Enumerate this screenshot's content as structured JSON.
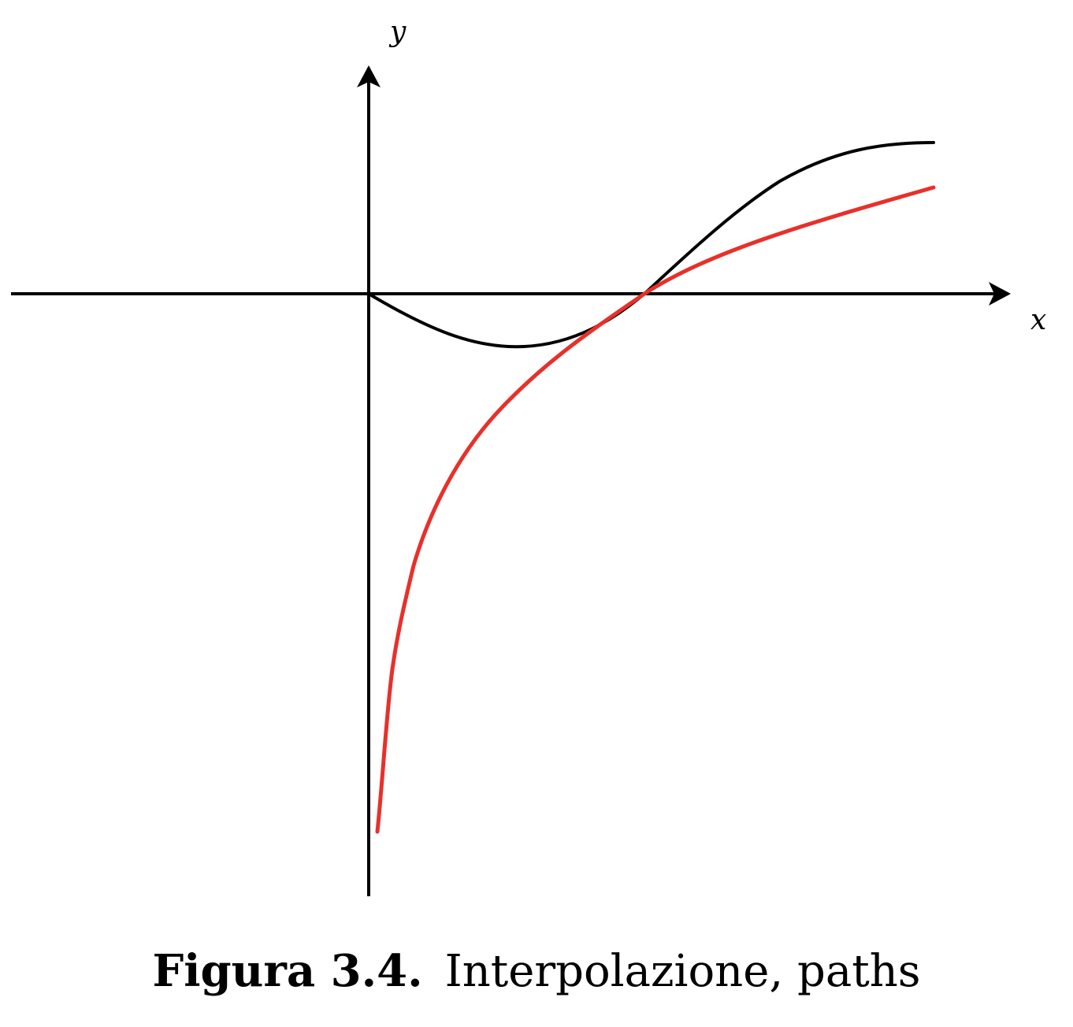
{
  "axes": {
    "x_label": "x",
    "y_label": "y"
  },
  "curves": [
    {
      "id": "black-curve",
      "color": "#000000"
    },
    {
      "id": "red-curve",
      "color": "#e8302a"
    }
  ],
  "caption": {
    "number": "Figura 3.4.",
    "text": "Interpolazione, paths"
  }
}
